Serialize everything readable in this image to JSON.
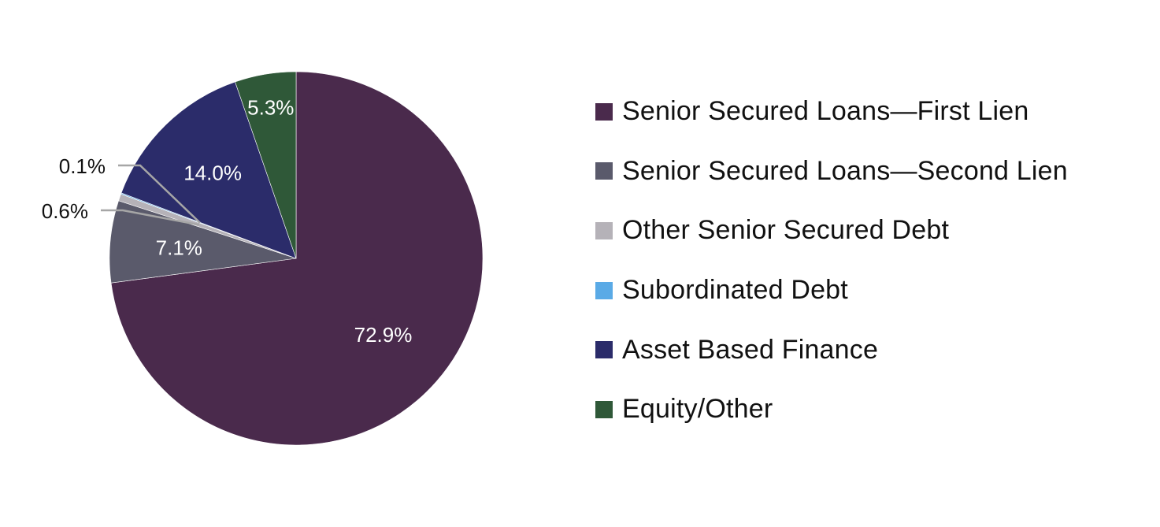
{
  "chart_data": {
    "type": "pie",
    "title": "",
    "start_angle_deg": 0,
    "direction": "clockwise",
    "legend_position": "right",
    "slices": [
      {
        "label": "Senior Secured Loans—First Lien",
        "value": 72.9,
        "value_label": "72.9%",
        "color": "#4a2a4c",
        "label_color": "#ffffff"
      },
      {
        "label": "Senior Secured Loans—Second Lien",
        "value": 7.1,
        "value_label": "7.1%",
        "color": "#5a5a6b",
        "label_color": "#ffffff"
      },
      {
        "label": "Other Senior Secured Debt",
        "value": 0.6,
        "value_label": "0.6%",
        "color": "#b5b2b8",
        "label_color": "#111111",
        "leader_line": true
      },
      {
        "label": "Subordinated Debt",
        "value": 0.1,
        "value_label": "0.1%",
        "color": "#5aaae6",
        "label_color": "#111111",
        "leader_line": true
      },
      {
        "label": "Asset Based Finance",
        "value": 14.0,
        "value_label": "14.0%",
        "color": "#2b2c6a",
        "label_color": "#ffffff"
      },
      {
        "label": "Equity/Other",
        "value": 5.3,
        "value_label": "5.3%",
        "color": "#2f5838",
        "label_color": "#ffffff"
      }
    ]
  }
}
